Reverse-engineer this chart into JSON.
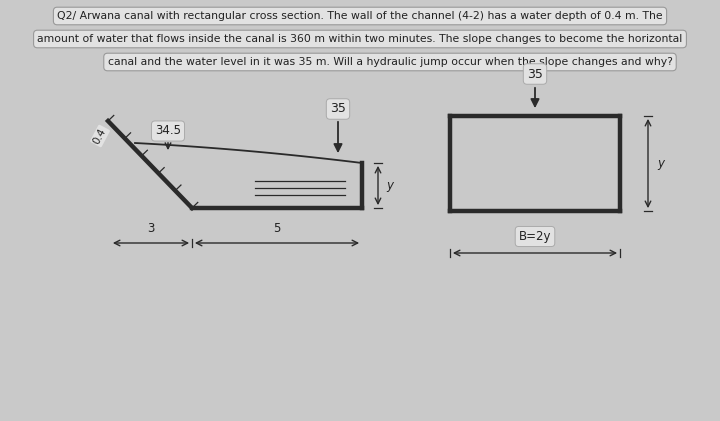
{
  "bg_color": "#c9c9c9",
  "text_box_color": "#e2e2e2",
  "line_color": "#2a2a2a",
  "text_color": "#222222",
  "text1": "Q2/ Arwana canal with rectangular cross section. The wall of the channel (4-2) has a water depth of 0.4 m. The",
  "text2": "amount of water that flows inside the canal is 360 m within two minutes. The slope changes to become the horizontal",
  "text3": "canal and the water level in it was 35 m. Will a hydraulic jump occur when the slope changes and why?",
  "label_04": "0.4",
  "label_345": "34.5",
  "label_35_left": "35",
  "label_35_right": "35",
  "label_y_left": "y",
  "label_y_right": "y",
  "label_3": "3",
  "label_5": "5",
  "label_B2y": "B=2y",
  "fig_width": 7.2,
  "fig_height": 4.21,
  "dpi": 100
}
